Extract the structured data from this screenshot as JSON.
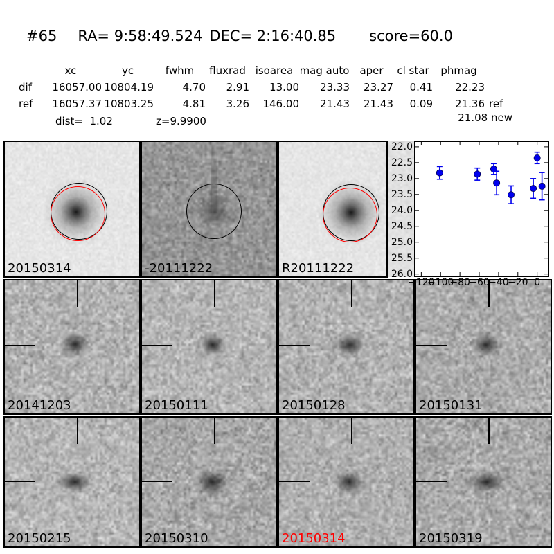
{
  "header": {
    "number": "#65",
    "ra": "RA= 9:58:49.524",
    "dec": "DEC= 2:16:40.85",
    "score": "score=60.0"
  },
  "table": {
    "headers": [
      "xc",
      "yc",
      "fwhm",
      "fluxrad",
      "isoarea",
      "mag auto",
      "aper",
      "cl star",
      "phmag"
    ],
    "rows": [
      {
        "label": "dif",
        "values": [
          "16057.00",
          "10804.19",
          "4.70",
          "2.91",
          "13.00",
          "23.33",
          "23.27",
          "0.41",
          "22.23"
        ],
        "suffix": ""
      },
      {
        "label": "ref",
        "values": [
          "16057.37",
          "10803.25",
          "4.81",
          "3.26",
          "146.00",
          "21.43",
          "21.43",
          "0.09",
          "21.36"
        ],
        "suffix": "ref"
      }
    ],
    "phmag_new": "21.08 new",
    "dist": "dist=  1.02",
    "z": "z=9.9900"
  },
  "panels": {
    "row1": [
      {
        "label": "20150314"
      },
      {
        "label": "-20111222"
      },
      {
        "label": "R20111222"
      }
    ],
    "row2": [
      {
        "label": "20141203"
      },
      {
        "label": "20150111"
      },
      {
        "label": "20150128"
      },
      {
        "label": "20150131"
      }
    ],
    "row3": [
      {
        "label": "20150215"
      },
      {
        "label": "20150310"
      },
      {
        "label": "20150314"
      },
      {
        "label": "20150319"
      }
    ]
  },
  "chart_data": {
    "type": "scatter",
    "title": "",
    "xlabel": "",
    "ylabel": "",
    "x": [
      -101,
      -62,
      -45,
      -42,
      -27,
      -4,
      0,
      5
    ],
    "y": [
      22.82,
      22.86,
      22.7,
      23.14,
      23.51,
      23.31,
      22.35,
      23.24
    ],
    "yerr": [
      0.2,
      0.19,
      0.17,
      0.37,
      0.28,
      0.31,
      0.18,
      0.43
    ],
    "xlim": [
      -126,
      11
    ],
    "ylim": [
      26.05,
      21.85
    ],
    "y_axis_inverted": true,
    "xticks": [
      -120,
      -100,
      -80,
      -60,
      -40,
      -20,
      0
    ],
    "xtick_labels": [
      "−120",
      "−100",
      "−80",
      "−60",
      "−40",
      "−20",
      "0"
    ],
    "yticks": [
      22.0,
      22.5,
      23.0,
      23.5,
      24.0,
      24.5,
      25.0,
      25.5,
      26.0
    ],
    "ytick_labels": [
      "22.0",
      "22.5",
      "23.0",
      "23.5",
      "24.0",
      "24.5",
      "25.0",
      "25.5",
      "26.0"
    ],
    "grid": false,
    "legend": null,
    "marker": "o",
    "marker_color": "#0000ee"
  },
  "colors": {
    "highlight_label": "#ff0000",
    "marker": "#0000ee",
    "panel_border": "#000000"
  }
}
